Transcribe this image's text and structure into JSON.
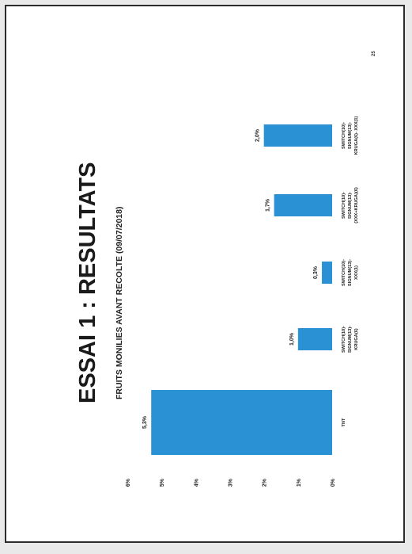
{
  "page_number": "25",
  "chart_data": {
    "type": "bar",
    "title": "ESSAI 1 : RESULTATS",
    "subtitle": "FRUITS MONILIES AVANT RECOLTE (09/07/2018)",
    "xlabel": "",
    "ylabel": "",
    "ylim": [
      0,
      6
    ],
    "y_ticks": [
      "0%",
      "1%",
      "2%",
      "3%",
      "4%",
      "5%",
      "6%"
    ],
    "bar_color": "#2a91d4",
    "categories": [
      [
        "TNT"
      ],
      [
        "SWITCH(10)-",
        "SIGNUM(13)-",
        "KRUGA(6)"
      ],
      [
        "SWITCH(10)-",
        "SIGNUM(13)-",
        "XXX(1)"
      ],
      [
        "SWITCH(10)-",
        "SIGNUM(13)-",
        "(XXX+KRUGA)(6)"
      ],
      [
        "SWITCH(10)-",
        "SIGNUM(13)-",
        "KRUGA(6)- XXX(1)"
      ]
    ],
    "values": [
      5.3,
      1.0,
      0.3,
      1.7,
      2.0
    ],
    "value_labels": [
      "5,3%",
      "1,0%",
      "0,3%",
      "1,7%",
      "2,0%"
    ],
    "grid": false,
    "legend": "none"
  }
}
